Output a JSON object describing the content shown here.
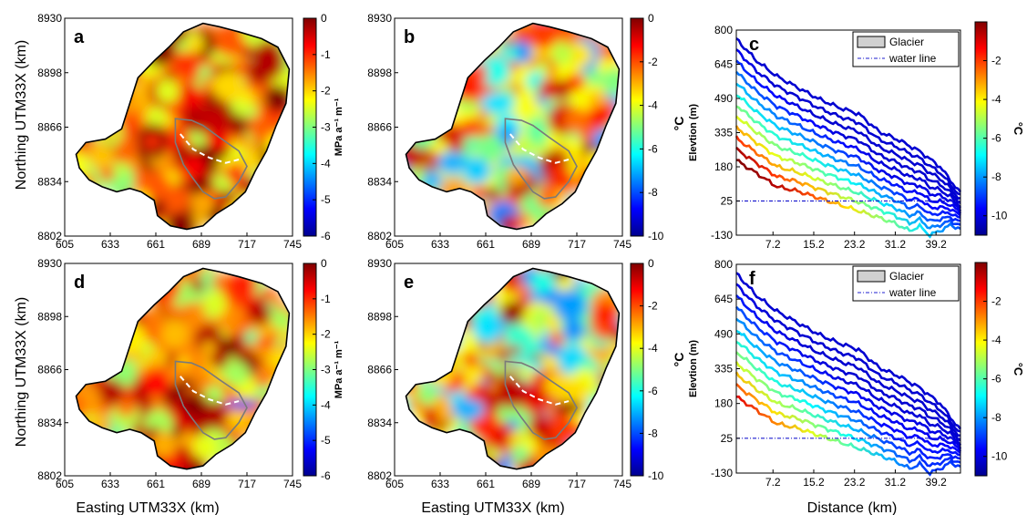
{
  "figure": {
    "map_tick_labels_y": [
      "8930",
      "8898",
      "8866",
      "8834",
      "8802"
    ],
    "map_tick_labels_x": [
      "605",
      "633",
      "661",
      "689",
      "717",
      "745"
    ],
    "map_ylabel": "Northing UTM33X (km)",
    "map_xlabel": "Easting UTM33X (km)",
    "profile_xlabel": "Distance (km)",
    "profile_ylabel": "Elevtion (m)",
    "profile_unit_label": "°C",
    "colorbar_unit_label_ab": "MPa a⁻¹ m⁻¹",
    "colorbar_unit_label_cf": "°C"
  },
  "colors": {
    "colormap": "jet",
    "glacier_outline": "#7a7a7a",
    "flowline": "#ffffff",
    "water_line": "#1f1fd0",
    "coast": "#000000"
  },
  "chart_data": [
    {
      "panel": "a",
      "type": "heatmap",
      "x_ticks": [
        605,
        633,
        661,
        689,
        717,
        745
      ],
      "y_ticks": [
        8802,
        8834,
        8866,
        8898,
        8930
      ],
      "xlim": [
        605,
        745
      ],
      "ylim": [
        8802,
        8930
      ],
      "colorbar": {
        "ticks": [
          "0",
          "-1",
          "-2",
          "-3",
          "-4",
          "-5",
          "-6"
        ],
        "range": [
          -6,
          0
        ],
        "label": "MPa a⁻¹ m⁻¹"
      }
    },
    {
      "panel": "b",
      "type": "heatmap",
      "x_ticks": [
        605,
        633,
        661,
        689,
        717,
        745
      ],
      "y_ticks": [
        8802,
        8834,
        8866,
        8898,
        8930
      ],
      "xlim": [
        605,
        745
      ],
      "ylim": [
        8802,
        8930
      ],
      "colorbar": {
        "ticks": [
          "0",
          "-2",
          "-4",
          "-6",
          "-8",
          "-10"
        ],
        "range": [
          -10,
          0
        ]
      }
    },
    {
      "panel": "c",
      "type": "line",
      "x_ticks": [
        "7.2",
        "15.2",
        "23.2",
        "31.2",
        "39.2"
      ],
      "y_ticks": [
        "800",
        "645",
        "490",
        "335",
        "180",
        "25",
        "-130"
      ],
      "xlim": [
        0,
        44
      ],
      "ylim": [
        -130,
        800
      ],
      "legend": [
        "Glacier",
        "water line"
      ],
      "legend_position": "top-right",
      "water_line_y": 25,
      "num_isotherm_profiles": 12,
      "colorbar": {
        "ticks": [
          "-2",
          "-4",
          "-6",
          "-8",
          "-10"
        ],
        "range": [
          -11,
          0
        ],
        "label": "°C"
      }
    },
    {
      "panel": "d",
      "type": "heatmap",
      "x_ticks": [
        605,
        633,
        661,
        689,
        717,
        745
      ],
      "y_ticks": [
        8802,
        8834,
        8866,
        8898,
        8930
      ],
      "xlim": [
        605,
        745
      ],
      "ylim": [
        8802,
        8930
      ],
      "colorbar": {
        "ticks": [
          "0",
          "-1",
          "-2",
          "-3",
          "-4",
          "-5",
          "-6"
        ],
        "range": [
          -6,
          0
        ],
        "label": "MPa a⁻¹ m⁻¹"
      }
    },
    {
      "panel": "e",
      "type": "heatmap",
      "x_ticks": [
        605,
        633,
        661,
        689,
        717,
        745
      ],
      "y_ticks": [
        8802,
        8834,
        8866,
        8898,
        8930
      ],
      "xlim": [
        605,
        745
      ],
      "ylim": [
        8802,
        8930
      ],
      "colorbar": {
        "ticks": [
          "0",
          "-2",
          "-4",
          "-6",
          "-8",
          "-10"
        ],
        "range": [
          -10,
          0
        ]
      }
    },
    {
      "panel": "f",
      "type": "line",
      "x_ticks": [
        "7.2",
        "15.2",
        "23.2",
        "31.2",
        "39.2"
      ],
      "y_ticks": [
        "800",
        "645",
        "490",
        "335",
        "180",
        "25",
        "-130"
      ],
      "xlim": [
        0,
        44
      ],
      "ylim": [
        -130,
        800
      ],
      "legend": [
        "Glacier",
        "water line"
      ],
      "legend_position": "top-right",
      "water_line_y": 25,
      "num_isotherm_profiles": 12,
      "colorbar": {
        "ticks": [
          "-2",
          "-4",
          "-6",
          "-8",
          "-10"
        ],
        "range": [
          -11,
          0
        ],
        "label": "°C"
      }
    }
  ]
}
